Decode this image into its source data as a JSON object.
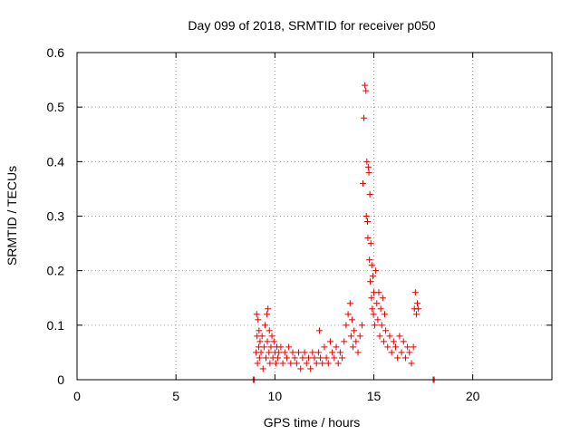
{
  "chart_data": {
    "type": "scatter",
    "title": "Day 099 of 2018, SRMTID for receiver p050",
    "xlabel": "GPS time / hours",
    "ylabel": "SRMTID / TECUs",
    "xlim": [
      0,
      24
    ],
    "ylim": [
      0,
      0.6
    ],
    "xticks": [
      0,
      5,
      10,
      15,
      20
    ],
    "xtick_labels": [
      "0",
      "5",
      "10",
      "15",
      "20"
    ],
    "yticks": [
      0,
      0.1,
      0.2,
      0.3,
      0.4,
      0.5,
      0.6
    ],
    "ytick_labels": [
      "0",
      "0.1",
      "0.2",
      "0.3",
      "0.4",
      "0.5",
      "0.6"
    ],
    "grid": true,
    "marker": "+",
    "color": "#e00000",
    "series": [
      {
        "name": "SRMTID",
        "x": [
          8.9,
          8.95,
          18.0,
          18.05,
          9.05,
          9.08,
          9.1,
          9.12,
          9.15,
          9.18,
          9.2,
          9.22,
          9.25,
          9.3,
          9.35,
          9.4,
          9.45,
          9.5,
          9.55,
          9.6,
          9.62,
          9.65,
          9.7,
          9.72,
          9.75,
          9.8,
          9.85,
          9.9,
          9.95,
          10.0,
          10.05,
          10.1,
          10.15,
          10.2,
          10.3,
          10.4,
          10.5,
          10.6,
          10.7,
          10.8,
          10.9,
          11.0,
          11.1,
          11.2,
          11.3,
          11.4,
          11.5,
          11.6,
          11.7,
          11.8,
          11.9,
          12.0,
          12.1,
          12.2,
          12.25,
          12.3,
          12.4,
          12.5,
          12.6,
          12.7,
          12.8,
          12.9,
          13.0,
          13.1,
          13.2,
          13.3,
          13.4,
          13.5,
          13.6,
          13.7,
          13.8,
          13.85,
          13.9,
          13.95,
          14.0,
          14.1,
          14.2,
          14.3,
          14.4,
          14.45,
          14.5,
          14.55,
          14.6,
          14.62,
          14.65,
          14.68,
          14.7,
          14.72,
          14.75,
          14.78,
          14.8,
          14.82,
          14.85,
          14.88,
          14.9,
          14.92,
          14.95,
          14.98,
          15.0,
          15.05,
          15.1,
          15.15,
          15.2,
          15.25,
          15.3,
          15.35,
          15.4,
          15.45,
          15.5,
          15.55,
          15.6,
          15.7,
          15.8,
          15.9,
          16.0,
          16.1,
          16.2,
          16.3,
          16.4,
          16.5,
          16.6,
          16.7,
          16.8,
          16.9,
          17.0,
          17.05,
          17.1,
          17.15,
          17.2,
          17.25
        ],
        "y": [
          0.0,
          0.0,
          0.0,
          0.0,
          0.05,
          0.12,
          0.08,
          0.03,
          0.11,
          0.06,
          0.09,
          0.04,
          0.07,
          0.05,
          0.08,
          0.02,
          0.06,
          0.1,
          0.04,
          0.12,
          0.07,
          0.13,
          0.05,
          0.09,
          0.03,
          0.06,
          0.08,
          0.04,
          0.07,
          0.05,
          0.03,
          0.06,
          0.04,
          0.05,
          0.06,
          0.03,
          0.05,
          0.04,
          0.06,
          0.03,
          0.05,
          0.04,
          0.03,
          0.05,
          0.02,
          0.04,
          0.05,
          0.03,
          0.04,
          0.02,
          0.05,
          0.04,
          0.03,
          0.05,
          0.09,
          0.04,
          0.03,
          0.06,
          0.04,
          0.03,
          0.07,
          0.05,
          0.04,
          0.06,
          0.03,
          0.05,
          0.04,
          0.07,
          0.1,
          0.12,
          0.14,
          0.08,
          0.11,
          0.06,
          0.09,
          0.07,
          0.05,
          0.08,
          0.1,
          0.36,
          0.48,
          0.54,
          0.53,
          0.3,
          0.4,
          0.29,
          0.26,
          0.39,
          0.38,
          0.22,
          0.34,
          0.18,
          0.25,
          0.15,
          0.21,
          0.13,
          0.19,
          0.12,
          0.16,
          0.1,
          0.2,
          0.14,
          0.11,
          0.16,
          0.08,
          0.13,
          0.1,
          0.15,
          0.07,
          0.12,
          0.09,
          0.06,
          0.08,
          0.05,
          0.07,
          0.06,
          0.04,
          0.08,
          0.05,
          0.07,
          0.04,
          0.06,
          0.05,
          0.03,
          0.06,
          0.13,
          0.16,
          0.12,
          0.14,
          0.13
        ]
      }
    ]
  }
}
